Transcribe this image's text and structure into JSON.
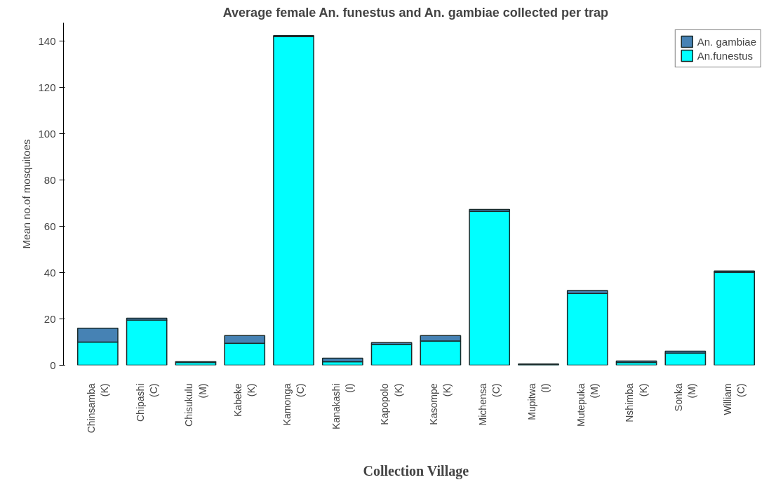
{
  "chart_data": {
    "type": "bar",
    "stacked": true,
    "title": "Average female An. funestus and An. gambiae collected per trap",
    "xlabel": "Collection Village",
    "ylabel": "Mean no.of mosquitoes",
    "categories": [
      "Chinsamba\n(K)",
      "Chipashi\n(C)",
      "Chisukulu\n(M)",
      "Kabeke\n(K)",
      "Kamonga\n(C)",
      "Kanakashi\n(I)",
      "Kapopolo\n(K)",
      "Kasompe\n(K)",
      "Michensa\n(C)",
      "Mupitwa\n(I)",
      "Mutepuka\n(M)",
      "Nshimba\n(K)",
      "Sonka\n(M)",
      "William\n(C)"
    ],
    "series": [
      {
        "name": "An.funestus",
        "color": "#00ffff",
        "values": [
          10,
          19.5,
          1.2,
          9.5,
          142,
          1.5,
          9,
          10.5,
          66.5,
          0.2,
          31,
          1.2,
          5.2,
          40.2
        ]
      },
      {
        "name": "An. gambiae",
        "color": "#4682b4",
        "values": [
          6,
          0.8,
          0.3,
          3.3,
          0.5,
          1.5,
          0.8,
          2.3,
          0.8,
          0.3,
          1.3,
          0.6,
          0.9,
          0.5
        ]
      }
    ],
    "ylim": [
      0,
      148
    ],
    "yticks": [
      0,
      20,
      40,
      60,
      80,
      100,
      120,
      140
    ],
    "grid": false,
    "legend": "top right"
  }
}
